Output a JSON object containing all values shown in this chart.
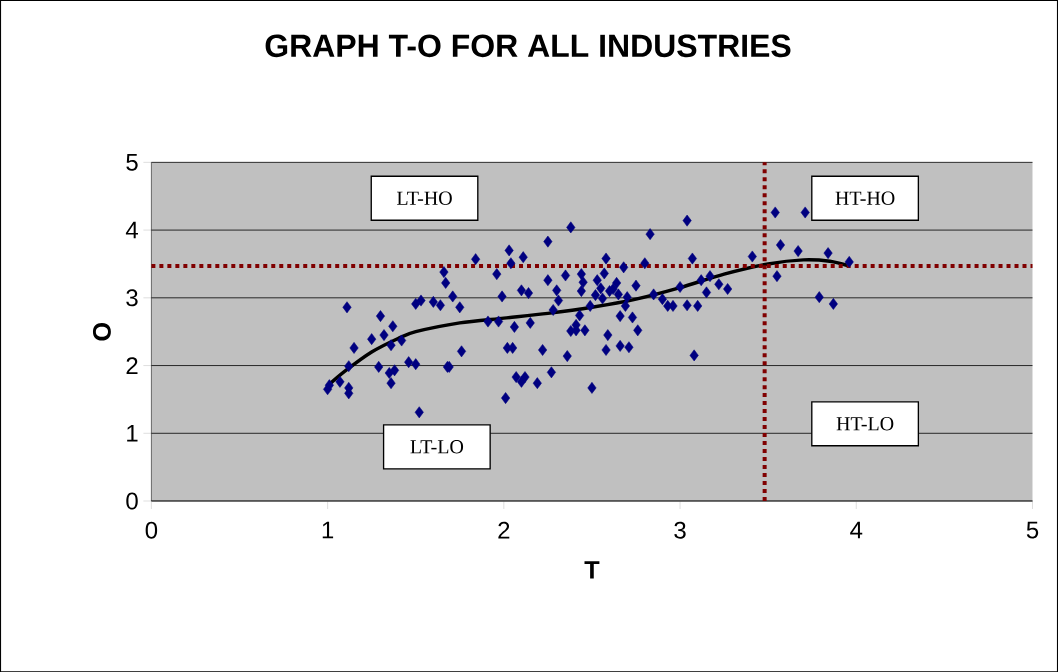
{
  "chart_data": {
    "type": "scatter",
    "title": "GRAPH T-O FOR ALL INDUSTRIES",
    "xlabel": "T",
    "ylabel": "O",
    "xlim": [
      0,
      5
    ],
    "ylim": [
      0,
      5
    ],
    "xticks": [
      0,
      1,
      2,
      3,
      4,
      5
    ],
    "yticks": [
      0,
      1,
      2,
      3,
      4,
      5
    ],
    "grid": "y",
    "marker": "diamond",
    "series": [
      {
        "color": "#000080",
        "x": [
          1.11,
          1.15,
          1.12,
          1.12,
          1.12,
          1.07,
          1.01,
          1.0,
          1.25,
          1.3,
          1.29,
          1.32,
          1.37,
          1.36,
          1.38,
          1.36,
          1.35,
          1.42,
          1.46,
          1.5,
          1.52,
          1.5,
          1.53,
          1.6,
          1.64,
          1.66,
          1.67,
          1.68,
          1.69,
          1.71,
          1.76,
          1.75,
          1.84,
          1.91,
          1.96,
          1.97,
          2.01,
          1.99,
          2.03,
          2.02,
          2.05,
          2.04,
          2.06,
          2.07,
          2.1,
          2.1,
          2.11,
          2.12,
          2.14,
          2.15,
          2.19,
          2.22,
          2.25,
          2.25,
          2.27,
          2.28,
          2.3,
          2.31,
          2.35,
          2.36,
          2.38,
          2.38,
          2.41,
          2.41,
          2.43,
          2.44,
          2.44,
          2.45,
          2.46,
          2.49,
          2.5,
          2.52,
          2.53,
          2.55,
          2.56,
          2.57,
          2.58,
          2.58,
          2.59,
          2.6,
          2.62,
          2.64,
          2.65,
          2.66,
          2.66,
          2.68,
          2.69,
          2.7,
          2.71,
          2.73,
          2.75,
          2.76,
          2.8,
          2.83,
          2.85,
          2.9,
          2.93,
          2.96,
          3.0,
          3.04,
          3.04,
          3.07,
          3.08,
          3.1,
          3.12,
          3.15,
          3.17,
          3.22,
          3.27,
          3.41,
          3.54,
          3.55,
          3.57,
          3.67,
          3.71,
          3.79,
          3.84,
          3.87,
          3.96
        ],
        "values": [
          2.86,
          2.26,
          1.99,
          1.67,
          1.59,
          1.76,
          1.71,
          1.65,
          2.39,
          2.73,
          1.98,
          2.45,
          2.58,
          2.3,
          1.93,
          1.74,
          1.89,
          2.37,
          2.05,
          2.02,
          1.31,
          2.91,
          2.96,
          2.94,
          2.89,
          3.38,
          3.22,
          1.98,
          1.98,
          3.02,
          2.21,
          2.86,
          3.57,
          2.65,
          3.35,
          2.65,
          1.52,
          3.02,
          3.7,
          2.26,
          2.26,
          3.51,
          2.57,
          1.83,
          3.11,
          1.76,
          3.6,
          1.83,
          3.07,
          2.63,
          1.74,
          2.23,
          3.83,
          3.26,
          1.9,
          2.82,
          3.11,
          2.96,
          3.33,
          2.14,
          4.04,
          2.51,
          2.52,
          2.6,
          2.74,
          3.1,
          3.35,
          3.23,
          2.52,
          2.88,
          1.67,
          3.04,
          3.26,
          3.14,
          2.99,
          3.36,
          3.58,
          2.23,
          2.45,
          3.1,
          3.13,
          3.22,
          3.05,
          2.29,
          2.73,
          3.45,
          2.88,
          3.01,
          2.27,
          2.71,
          3.18,
          2.52,
          3.51,
          3.94,
          3.05,
          2.98,
          2.88,
          2.88,
          3.16,
          4.14,
          2.89,
          3.58,
          2.15,
          2.88,
          3.26,
          3.08,
          3.32,
          3.2,
          3.13,
          3.61,
          4.26,
          3.32,
          3.78,
          3.69,
          4.26,
          3.01,
          3.66,
          2.91,
          3.53
        ]
      },
      {
        "type": "line",
        "color": "#000000",
        "marker": "none",
        "x": [
          1.0,
          1.1,
          1.25,
          1.4,
          1.5,
          1.75,
          2.0,
          2.25,
          2.5,
          2.75,
          3.0,
          3.25,
          3.5,
          3.7,
          3.85,
          3.96
        ],
        "values": [
          1.7,
          1.92,
          2.2,
          2.4,
          2.5,
          2.63,
          2.7,
          2.77,
          2.86,
          2.98,
          3.15,
          3.35,
          3.5,
          3.56,
          3.54,
          3.47
        ]
      }
    ],
    "ref_lines": [
      {
        "axis": "x",
        "value": 3.48,
        "color": "#800000",
        "line_style": "dotted"
      },
      {
        "axis": "y",
        "value": 3.47,
        "color": "#800000",
        "line_style": "dotted"
      }
    ],
    "annotations": [
      "LT-HO",
      "HT-HO",
      "HT-LO",
      "LT-LO"
    ]
  }
}
